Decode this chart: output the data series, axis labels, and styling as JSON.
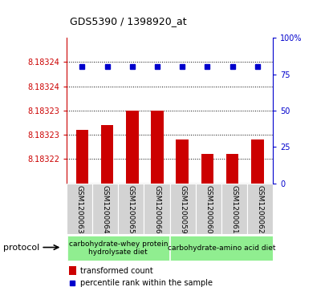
{
  "title": "GDS5390 / 1398920_at",
  "samples": [
    "GSM1200063",
    "GSM1200064",
    "GSM1200065",
    "GSM1200066",
    "GSM1200059",
    "GSM1200060",
    "GSM1200061",
    "GSM1200062"
  ],
  "red_values": [
    8.183226,
    8.183227,
    8.18323,
    8.18323,
    8.183224,
    8.183221,
    8.183221,
    8.183224
  ],
  "blue_values": [
    80,
    80,
    80,
    80,
    80,
    80,
    80,
    80
  ],
  "ylim_left": [
    8.183215,
    8.183245
  ],
  "ylim_right": [
    0,
    100
  ],
  "ytick_vals_left": [
    8.18322,
    8.183225,
    8.18323,
    8.183235,
    8.18324
  ],
  "ytick_labels_left": [
    "8.18322",
    "8.18323",
    "8.18323",
    "8.18324",
    "8.18324"
  ],
  "ytick_vals_right": [
    0,
    25,
    50,
    75,
    100
  ],
  "ytick_labels_right": [
    "0",
    "25",
    "50",
    "75",
    "100%"
  ],
  "groups": [
    {
      "label": "carbohydrate-whey protein\nhydrolysate diet",
      "color": "#90ee90",
      "start": 0,
      "end": 3
    },
    {
      "label": "carbohydrate-amino acid diet",
      "color": "#90ee90",
      "start": 4,
      "end": 7
    }
  ],
  "protocol_label": "protocol",
  "bar_color_red": "#cc0000",
  "dot_color_blue": "#0000cc",
  "bg_color_plot": "#ffffff",
  "bg_color_xtick": "#d3d3d3",
  "title_color": "#000000",
  "left_axis_color": "#cc0000",
  "right_axis_color": "#0000cc"
}
